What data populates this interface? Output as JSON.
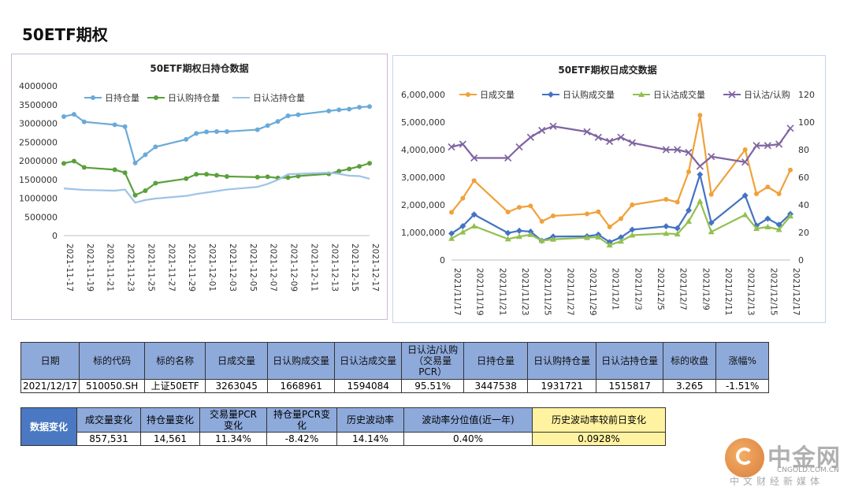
{
  "page_title": "50ETF期权",
  "chart_data": [
    {
      "type": "line",
      "title": "50ETF期权日持仓数据",
      "x": [
        "2021-11-17",
        "2021-11-18",
        "2021-11-19",
        "2021-11-22",
        "2021-11-23",
        "2021-11-24",
        "2021-11-25",
        "2021-11-26",
        "2021-11-29",
        "2021-11-30",
        "2021-12-01",
        "2021-12-02",
        "2021-12-03",
        "2021-12-06",
        "2021-12-07",
        "2021-12-08",
        "2021-12-09",
        "2021-12-10",
        "2021-12-13",
        "2021-12-14",
        "2021-12-15",
        "2021-12-16",
        "2021-12-17"
      ],
      "xticks": [
        "2021-11-17",
        "2021-11-19",
        "2021-11-21",
        "2021-11-23",
        "2021-11-25",
        "2021-11-27",
        "2021-11-29",
        "2021-12-01",
        "2021-12-03",
        "2021-12-05",
        "2021-12-07",
        "2021-12-09",
        "2021-12-11",
        "2021-12-13",
        "2021-12-15",
        "2021-12-17"
      ],
      "ylim": [
        0,
        4000000
      ],
      "yticks": [
        "4000000",
        "3500000",
        "3000000",
        "2500000",
        "2000000",
        "1500000",
        "1000000",
        "500000",
        "0"
      ],
      "legend_position": "top",
      "series": [
        {
          "name": "日持仓量",
          "color": "#6aaad8",
          "marker": "circle",
          "values": [
            3180000,
            3240000,
            3040000,
            2960000,
            2910000,
            1940000,
            2160000,
            2370000,
            2570000,
            2730000,
            2770000,
            2780000,
            2780000,
            2830000,
            2940000,
            3050000,
            3200000,
            3230000,
            3330000,
            3360000,
            3380000,
            3430000,
            3447538
          ]
        },
        {
          "name": "日认购持仓量",
          "color": "#5aa03c",
          "marker": "circle",
          "values": [
            1930000,
            1990000,
            1820000,
            1760000,
            1680000,
            1080000,
            1200000,
            1400000,
            1520000,
            1640000,
            1640000,
            1610000,
            1580000,
            1560000,
            1570000,
            1540000,
            1550000,
            1590000,
            1650000,
            1720000,
            1780000,
            1850000,
            1931721
          ]
        },
        {
          "name": "日认沽持仓量",
          "color": "#9ec3e6",
          "marker": "none",
          "values": [
            1260000,
            1240000,
            1220000,
            1200000,
            1230000,
            880000,
            950000,
            990000,
            1060000,
            1110000,
            1150000,
            1190000,
            1230000,
            1300000,
            1380000,
            1490000,
            1640000,
            1650000,
            1680000,
            1650000,
            1600000,
            1590000,
            1515817
          ]
        }
      ]
    },
    {
      "type": "line",
      "title": "50ETF期权日成交数据",
      "x": [
        "2021/11/17",
        "2021/11/18",
        "2021/11/19",
        "2021/11/22",
        "2021/11/23",
        "2021/11/24",
        "2021/11/25",
        "2021/11/26",
        "2021/11/29",
        "2021/11/30",
        "2021/12/1",
        "2021/12/2",
        "2021/12/3",
        "2021/12/6",
        "2021/12/7",
        "2021/12/8",
        "2021/12/9",
        "2021/12/10",
        "2021/12/13",
        "2021/12/14",
        "2021/12/15",
        "2021/12/16",
        "2021/12/17"
      ],
      "xticks": [
        "2021/11/17",
        "2021/11/19",
        "2021/11/21",
        "2021/11/23",
        "2021/11/25",
        "2021/11/27",
        "2021/11/29",
        "2021/12/1",
        "2021/12/3",
        "2021/12/5",
        "2021/12/7",
        "2021/12/9",
        "2021/12/11",
        "2021/12/13",
        "2021/12/15",
        "2021/12/17"
      ],
      "ylim": [
        0,
        6000000
      ],
      "yticks": [
        "6,000,000",
        "5,000,000",
        "4,000,000",
        "3,000,000",
        "2,000,000",
        "1,000,000",
        "0"
      ],
      "y2lim": [
        0,
        120
      ],
      "y2ticks": [
        "120",
        "100",
        "80",
        "60",
        "40",
        "20",
        "0"
      ],
      "legend_position": "top",
      "series": [
        {
          "name": "日成交量",
          "color": "#f0a13a",
          "marker": "circle",
          "axis": "left",
          "values": [
            1730000,
            2240000,
            2880000,
            1740000,
            1910000,
            1960000,
            1400000,
            1600000,
            1670000,
            1750000,
            1200000,
            1500000,
            2000000,
            2200000,
            2100000,
            3200000,
            5250000,
            2380000,
            4000000,
            2400000,
            2650000,
            2400000,
            3263045
          ]
        },
        {
          "name": "日认购成交量",
          "color": "#4472c4",
          "marker": "diamond",
          "axis": "left",
          "values": [
            960000,
            1230000,
            1650000,
            980000,
            1060000,
            1030000,
            700000,
            850000,
            860000,
            920000,
            650000,
            820000,
            1100000,
            1220000,
            1150000,
            1800000,
            3100000,
            1350000,
            2340000,
            1250000,
            1500000,
            1280000,
            1668961
          ]
        },
        {
          "name": "日认沽成交量",
          "color": "#92c050",
          "marker": "triangle",
          "axis": "left",
          "values": [
            780000,
            1010000,
            1230000,
            760000,
            850000,
            920000,
            700000,
            750000,
            810000,
            830000,
            540000,
            680000,
            900000,
            960000,
            940000,
            1400000,
            2130000,
            1020000,
            1640000,
            1140000,
            1200000,
            1100000,
            1594084
          ]
        },
        {
          "name": "日认沽/认购",
          "color": "#8064a2",
          "marker": "x",
          "axis": "right",
          "values": [
            82,
            84,
            74,
            74,
            82,
            89,
            94,
            97,
            93,
            89,
            86,
            89,
            85,
            80,
            80,
            78,
            68,
            75,
            71,
            83,
            83,
            84,
            95.51
          ]
        }
      ]
    }
  ],
  "table1": {
    "headers": [
      "日期",
      "标的代码",
      "标的名称",
      "日成交量",
      "日认购成交量",
      "日认沽成交量",
      "日认沽/认购\n（交易量\nPCR）",
      "日持仓量",
      "日认购持仓量",
      "日认沽持仓量",
      "标的收盘",
      "涨幅%"
    ],
    "values": [
      "2021/12/17",
      "510050.SH",
      "上证50ETF",
      "3263045",
      "1668961",
      "1594084",
      "95.51%",
      "3447538",
      "1931721",
      "1515817",
      "3.265",
      "-1.51%"
    ]
  },
  "table2": {
    "section_label": "数据变化",
    "headers": [
      "成交量变化",
      "持仓量变化",
      "交易量PCR\n变化",
      "持仓量PCR变\n化",
      "历史波动率",
      "波动率分位值(近一年)",
      "历史波动率较前日变化"
    ],
    "values": [
      "857,531",
      "14,561",
      "11.34%",
      "-8.42%",
      "14.14%",
      "0.40%",
      "0.0928%"
    ]
  },
  "logo": {
    "name": "中金网",
    "url": "CNGOLD.COM.CN",
    "subtitle": "中文财经新媒体"
  }
}
